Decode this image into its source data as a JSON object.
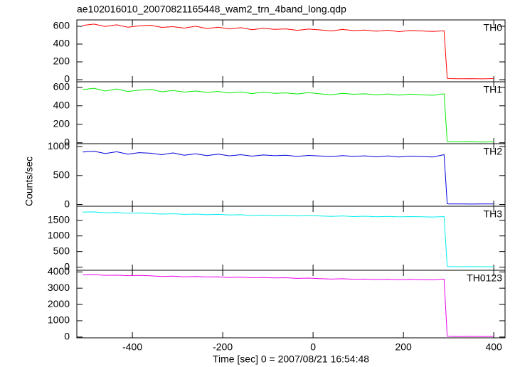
{
  "title": "ae102016010_20070821165448_wam2_trn_4band_long.qdp",
  "xlabel": "Time [sec] 0 = 2007/08/21 16:54:48",
  "ylabel": "Counts/sec",
  "chart_data": [
    {
      "type": "line",
      "xlim": [
        -523,
        425
      ],
      "xticks": [
        -400,
        -200,
        0,
        200,
        400
      ],
      "ylim": [
        -24,
        672
      ],
      "yticks": [
        0,
        200,
        400,
        600
      ],
      "x": [
        -510,
        -485,
        -460,
        -435,
        -410,
        -385,
        -360,
        -335,
        -310,
        -285,
        -260,
        -235,
        -210,
        -185,
        -160,
        -135,
        -110,
        -85,
        -60,
        -35,
        -10,
        15,
        40,
        65,
        90,
        115,
        140,
        165,
        190,
        215,
        240,
        265,
        290,
        297,
        300,
        325,
        350,
        375,
        400
      ],
      "series": [
        {
          "name": "TH0",
          "color": "#ff0000",
          "values": [
            610,
            625,
            598,
            617,
            590,
            605,
            612,
            588,
            596,
            580,
            601,
            575,
            590,
            570,
            585,
            562,
            578,
            566,
            571,
            555,
            569,
            560,
            548,
            565,
            552,
            558,
            545,
            556,
            540,
            553,
            548,
            542,
            550,
            15,
            12,
            10,
            11,
            9,
            12
          ]
        }
      ]
    },
    {
      "type": "line",
      "xlim": [
        -523,
        425
      ],
      "xticks": [
        -400,
        -200,
        0,
        200,
        400
      ],
      "ylim": [
        -10,
        660
      ],
      "yticks": [
        0,
        200,
        400,
        600
      ],
      "x": [
        -510,
        -485,
        -460,
        -435,
        -410,
        -385,
        -360,
        -335,
        -310,
        -285,
        -260,
        -235,
        -210,
        -185,
        -160,
        -135,
        -110,
        -85,
        -60,
        -35,
        -10,
        15,
        40,
        65,
        90,
        115,
        140,
        165,
        190,
        215,
        240,
        265,
        290,
        297,
        300,
        325,
        350,
        375,
        400
      ],
      "series": [
        {
          "name": "TH1",
          "color": "#00ee00",
          "values": [
            575,
            590,
            560,
            582,
            555,
            570,
            578,
            552,
            565,
            548,
            560,
            545,
            555,
            538,
            550,
            532,
            548,
            535,
            540,
            528,
            542,
            530,
            520,
            535,
            525,
            530,
            518,
            528,
            515,
            526,
            520,
            514,
            530,
            12,
            10,
            9,
            10,
            8,
            11
          ]
        }
      ]
    },
    {
      "type": "line",
      "xlim": [
        -523,
        425
      ],
      "xticks": [
        -400,
        -200,
        0,
        200,
        400
      ],
      "ylim": [
        -30,
        1050
      ],
      "yticks": [
        0,
        500,
        1000
      ],
      "x": [
        -510,
        -485,
        -460,
        -435,
        -410,
        -385,
        -360,
        -335,
        -310,
        -285,
        -260,
        -235,
        -210,
        -185,
        -160,
        -135,
        -110,
        -85,
        -60,
        -35,
        -10,
        15,
        40,
        65,
        90,
        115,
        140,
        165,
        190,
        215,
        240,
        265,
        290,
        297,
        300,
        325,
        350,
        375,
        400
      ],
      "series": [
        {
          "name": "TH2",
          "color": "#0000dd",
          "values": [
            905,
            920,
            880,
            910,
            870,
            895,
            885,
            860,
            890,
            850,
            875,
            845,
            868,
            840,
            860,
            835,
            855,
            842,
            850,
            830,
            848,
            838,
            825,
            845,
            830,
            840,
            822,
            838,
            820,
            835,
            828,
            820,
            860,
            15,
            10,
            9,
            8,
            10,
            9
          ]
        }
      ]
    },
    {
      "type": "line",
      "xlim": [
        -523,
        425
      ],
      "xticks": [
        -400,
        -200,
        0,
        200,
        400
      ],
      "ylim": [
        -100,
        1950
      ],
      "yticks": [
        0,
        500,
        1000,
        1500
      ],
      "x": [
        -510,
        -485,
        -460,
        -435,
        -410,
        -385,
        -360,
        -335,
        -310,
        -285,
        -260,
        -235,
        -210,
        -185,
        -160,
        -135,
        -110,
        -85,
        -60,
        -35,
        -10,
        15,
        40,
        65,
        90,
        115,
        140,
        165,
        190,
        215,
        240,
        265,
        290,
        297,
        300,
        325,
        350,
        375,
        400
      ],
      "series": [
        {
          "name": "TH3",
          "color": "#00eeee",
          "values": [
            1760,
            1770,
            1740,
            1750,
            1730,
            1735,
            1720,
            1700,
            1710,
            1690,
            1700,
            1680,
            1690,
            1670,
            1680,
            1655,
            1665,
            1650,
            1660,
            1640,
            1655,
            1640,
            1625,
            1640,
            1620,
            1630,
            1615,
            1625,
            1610,
            1620,
            1612,
            1605,
            1620,
            25,
            18,
            15,
            16,
            14,
            15
          ]
        }
      ]
    },
    {
      "type": "line",
      "xlim": [
        -523,
        425
      ],
      "xticks": [
        -400,
        -200,
        0,
        200,
        400
      ],
      "ylim": [
        -50,
        4100
      ],
      "yticks": [
        0,
        1000,
        2000,
        3000,
        4000
      ],
      "x": [
        -510,
        -485,
        -460,
        -435,
        -410,
        -385,
        -360,
        -335,
        -310,
        -285,
        -260,
        -235,
        -210,
        -185,
        -160,
        -135,
        -110,
        -85,
        -60,
        -35,
        -10,
        15,
        40,
        65,
        90,
        115,
        140,
        165,
        190,
        215,
        240,
        265,
        290,
        297,
        300,
        325,
        350,
        375,
        400
      ],
      "series": [
        {
          "name": "TH0123",
          "color": "#ee00ee",
          "values": [
            3820,
            3840,
            3790,
            3800,
            3770,
            3780,
            3760,
            3720,
            3740,
            3700,
            3720,
            3690,
            3700,
            3660,
            3680,
            3640,
            3660,
            3630,
            3640,
            3600,
            3620,
            3590,
            3560,
            3580,
            3550,
            3560,
            3530,
            3550,
            3520,
            3540,
            3520,
            3510,
            3560,
            50,
            40,
            35,
            38,
            34,
            36
          ]
        }
      ]
    }
  ]
}
